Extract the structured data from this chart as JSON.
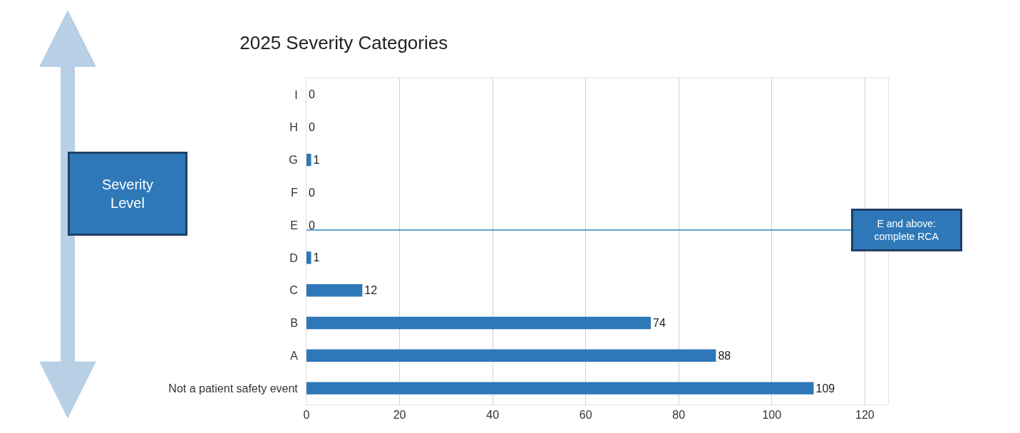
{
  "chart_data": {
    "type": "bar",
    "orientation": "horizontal",
    "title": "2025 Severity Categories",
    "categories": [
      "I",
      "H",
      "G",
      "F",
      "E",
      "D",
      "C",
      "B",
      "A",
      "Not a patient safety event"
    ],
    "values": [
      0,
      0,
      1,
      0,
      0,
      1,
      12,
      74,
      88,
      109
    ],
    "color": "#2e78b7",
    "xlim": [
      0,
      125
    ],
    "xticks": [
      0,
      20,
      40,
      60,
      80,
      100,
      120
    ],
    "grid": "x",
    "data_labels": true,
    "ref_lines": [
      {
        "axis": "y",
        "value": "E",
        "label": "E and above: complete RCA",
        "color": "#2e86c1"
      }
    ],
    "annotations": [
      "Severity Level"
    ]
  }
}
